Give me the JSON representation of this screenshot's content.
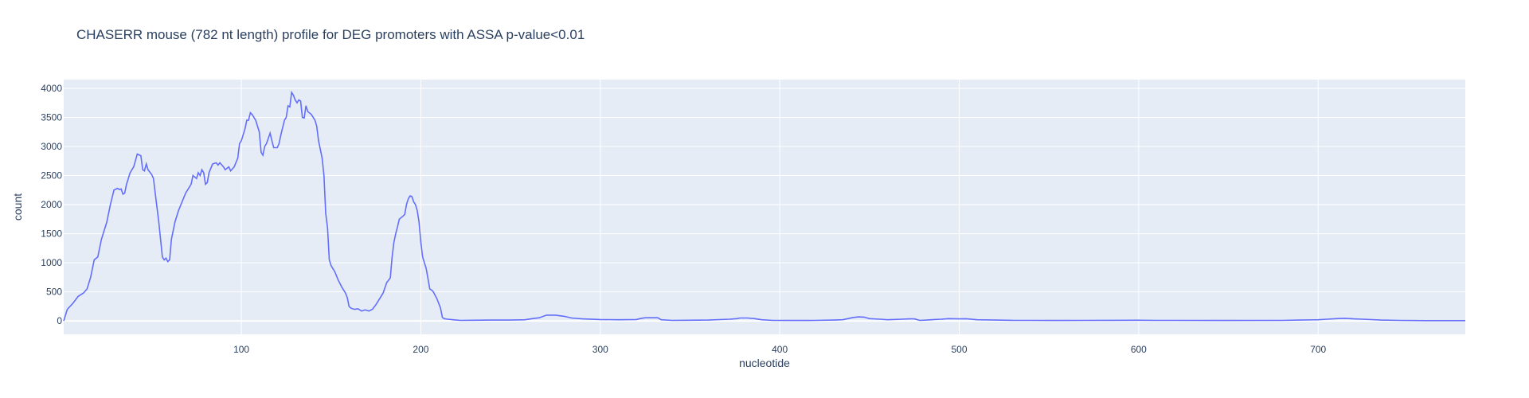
{
  "chart_data": {
    "type": "line",
    "title": "CHASERR mouse (782 nt length) profile for DEG promoters with ASSA p-value<0.01",
    "xlabel": "nucleotide",
    "ylabel": "count",
    "xlim": [
      1,
      782
    ],
    "ylim": [
      -230,
      4150
    ],
    "x_ticks": [
      100,
      200,
      300,
      400,
      500,
      600,
      700
    ],
    "y_ticks": [
      0,
      500,
      1000,
      1500,
      2000,
      2500,
      3000,
      3500,
      4000
    ],
    "grid": true,
    "legend": "none",
    "colors": {
      "line": "#636efa",
      "plot_bg": "#e5ecf6",
      "grid": "#ffffff",
      "text": "#2a3f5f"
    },
    "series": [
      {
        "points": [
          [
            1,
            0
          ],
          [
            3,
            200
          ],
          [
            6,
            300
          ],
          [
            9,
            420
          ],
          [
            12,
            480
          ],
          [
            14,
            550
          ],
          [
            16,
            750
          ],
          [
            18,
            1050
          ],
          [
            20,
            1100
          ],
          [
            22,
            1400
          ],
          [
            25,
            1700
          ],
          [
            27,
            2000
          ],
          [
            29,
            2250
          ],
          [
            31,
            2280
          ],
          [
            32,
            2260
          ],
          [
            33,
            2270
          ],
          [
            34,
            2180
          ],
          [
            35,
            2200
          ],
          [
            36,
            2350
          ],
          [
            38,
            2550
          ],
          [
            40,
            2650
          ],
          [
            42,
            2870
          ],
          [
            44,
            2840
          ],
          [
            45,
            2600
          ],
          [
            46,
            2580
          ],
          [
            47,
            2700
          ],
          [
            48,
            2600
          ],
          [
            50,
            2520
          ],
          [
            51,
            2450
          ],
          [
            52,
            2200
          ],
          [
            54,
            1700
          ],
          [
            56,
            1100
          ],
          [
            57,
            1050
          ],
          [
            58,
            1080
          ],
          [
            59,
            1020
          ],
          [
            60,
            1050
          ],
          [
            61,
            1400
          ],
          [
            63,
            1700
          ],
          [
            65,
            1900
          ],
          [
            67,
            2050
          ],
          [
            69,
            2200
          ],
          [
            71,
            2300
          ],
          [
            72,
            2350
          ],
          [
            73,
            2500
          ],
          [
            75,
            2450
          ],
          [
            76,
            2550
          ],
          [
            77,
            2500
          ],
          [
            78,
            2600
          ],
          [
            79,
            2550
          ],
          [
            80,
            2350
          ],
          [
            81,
            2380
          ],
          [
            82,
            2550
          ],
          [
            84,
            2700
          ],
          [
            86,
            2720
          ],
          [
            87,
            2680
          ],
          [
            88,
            2720
          ],
          [
            90,
            2650
          ],
          [
            91,
            2600
          ],
          [
            93,
            2650
          ],
          [
            94,
            2580
          ],
          [
            96,
            2650
          ],
          [
            98,
            2800
          ],
          [
            99,
            3050
          ],
          [
            100,
            3100
          ],
          [
            102,
            3300
          ],
          [
            103,
            3450
          ],
          [
            104,
            3450
          ],
          [
            105,
            3580
          ],
          [
            106,
            3550
          ],
          [
            108,
            3450
          ],
          [
            110,
            3250
          ],
          [
            111,
            2900
          ],
          [
            112,
            2850
          ],
          [
            113,
            3000
          ],
          [
            114,
            3050
          ],
          [
            116,
            3230
          ],
          [
            117,
            3100
          ],
          [
            118,
            2980
          ],
          [
            120,
            2980
          ],
          [
            121,
            3050
          ],
          [
            122,
            3200
          ],
          [
            124,
            3450
          ],
          [
            125,
            3500
          ],
          [
            126,
            3700
          ],
          [
            127,
            3680
          ],
          [
            128,
            3930
          ],
          [
            129,
            3880
          ],
          [
            130,
            3800
          ],
          [
            131,
            3750
          ],
          [
            132,
            3800
          ],
          [
            133,
            3780
          ],
          [
            134,
            3500
          ],
          [
            135,
            3490
          ],
          [
            136,
            3700
          ],
          [
            137,
            3600
          ],
          [
            139,
            3550
          ],
          [
            141,
            3450
          ],
          [
            142,
            3350
          ],
          [
            143,
            3100
          ],
          [
            145,
            2800
          ],
          [
            146,
            2500
          ],
          [
            147,
            1850
          ],
          [
            148,
            1600
          ],
          [
            149,
            1050
          ],
          [
            150,
            950
          ],
          [
            152,
            850
          ],
          [
            154,
            700
          ],
          [
            156,
            580
          ],
          [
            158,
            480
          ],
          [
            159,
            400
          ],
          [
            160,
            250
          ],
          [
            161,
            220
          ],
          [
            163,
            200
          ],
          [
            165,
            210
          ],
          [
            167,
            170
          ],
          [
            169,
            190
          ],
          [
            171,
            170
          ],
          [
            173,
            200
          ],
          [
            175,
            280
          ],
          [
            177,
            380
          ],
          [
            179,
            480
          ],
          [
            181,
            660
          ],
          [
            183,
            740
          ],
          [
            184,
            1100
          ],
          [
            185,
            1350
          ],
          [
            186,
            1500
          ],
          [
            187,
            1620
          ],
          [
            188,
            1750
          ],
          [
            190,
            1800
          ],
          [
            191,
            1830
          ],
          [
            192,
            2000
          ],
          [
            193,
            2100
          ],
          [
            194,
            2150
          ],
          [
            195,
            2140
          ],
          [
            196,
            2050
          ],
          [
            197,
            2000
          ],
          [
            198,
            1900
          ],
          [
            199,
            1700
          ],
          [
            200,
            1350
          ],
          [
            201,
            1100
          ],
          [
            203,
            900
          ],
          [
            205,
            550
          ],
          [
            206,
            530
          ],
          [
            207,
            500
          ],
          [
            209,
            380
          ],
          [
            211,
            220
          ],
          [
            212,
            60
          ],
          [
            213,
            40
          ],
          [
            215,
            30
          ],
          [
            218,
            20
          ],
          [
            222,
            10
          ],
          [
            230,
            12
          ],
          [
            240,
            15
          ],
          [
            250,
            15
          ],
          [
            258,
            20
          ],
          [
            262,
            40
          ],
          [
            266,
            55
          ],
          [
            270,
            100
          ],
          [
            275,
            100
          ],
          [
            280,
            80
          ],
          [
            284,
            50
          ],
          [
            290,
            35
          ],
          [
            300,
            25
          ],
          [
            310,
            20
          ],
          [
            320,
            25
          ],
          [
            322,
            40
          ],
          [
            325,
            55
          ],
          [
            332,
            55
          ],
          [
            334,
            20
          ],
          [
            340,
            10
          ],
          [
            350,
            12
          ],
          [
            360,
            15
          ],
          [
            372,
            30
          ],
          [
            376,
            40
          ],
          [
            378,
            50
          ],
          [
            382,
            50
          ],
          [
            386,
            40
          ],
          [
            390,
            20
          ],
          [
            396,
            10
          ],
          [
            405,
            8
          ],
          [
            420,
            10
          ],
          [
            430,
            15
          ],
          [
            435,
            20
          ],
          [
            438,
            40
          ],
          [
            441,
            60
          ],
          [
            444,
            70
          ],
          [
            447,
            65
          ],
          [
            450,
            40
          ],
          [
            456,
            30
          ],
          [
            460,
            20
          ],
          [
            463,
            25
          ],
          [
            468,
            30
          ],
          [
            472,
            35
          ],
          [
            475,
            35
          ],
          [
            478,
            10
          ],
          [
            482,
            15
          ],
          [
            486,
            25
          ],
          [
            490,
            30
          ],
          [
            494,
            40
          ],
          [
            500,
            35
          ],
          [
            504,
            38
          ],
          [
            510,
            20
          ],
          [
            520,
            15
          ],
          [
            530,
            10
          ],
          [
            540,
            10
          ],
          [
            550,
            8
          ],
          [
            560,
            8
          ],
          [
            570,
            10
          ],
          [
            600,
            12
          ],
          [
            610,
            10
          ],
          [
            620,
            10
          ],
          [
            650,
            8
          ],
          [
            680,
            10
          ],
          [
            690,
            15
          ],
          [
            700,
            20
          ],
          [
            705,
            30
          ],
          [
            710,
            40
          ],
          [
            715,
            45
          ],
          [
            720,
            35
          ],
          [
            725,
            30
          ],
          [
            735,
            15
          ],
          [
            745,
            10
          ],
          [
            760,
            5
          ],
          [
            770,
            5
          ],
          [
            782,
            5
          ]
        ]
      }
    ]
  }
}
